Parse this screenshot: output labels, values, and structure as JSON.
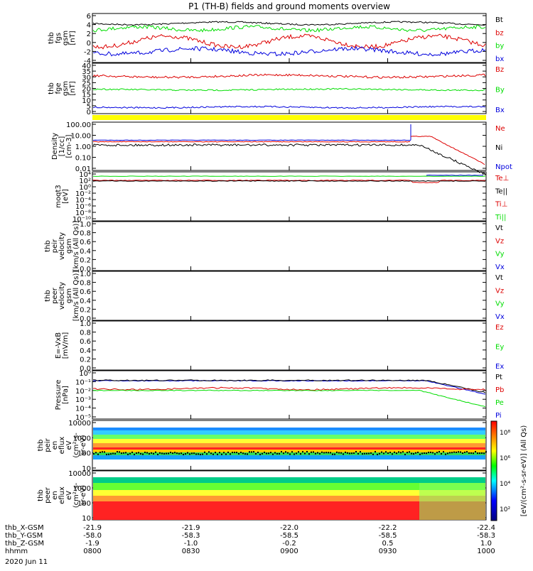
{
  "title": "P1  (TH-B) fields and ground moments overview",
  "date_label": "2020 Jun 11",
  "colors": {
    "black": "#000000",
    "red": "#dd0000",
    "green": "#00dd00",
    "blue": "#0000dd",
    "yellow": "#ffff00"
  },
  "panels": [
    {
      "id": "fgs",
      "ylabel": [
        "thb",
        "fgs",
        "gsm",
        "[nT]"
      ],
      "ticks": [
        "6",
        "4",
        "2",
        "0",
        "-2",
        "-4"
      ],
      "yrange": [
        -5,
        6
      ],
      "legend": [
        {
          "text": "Bt",
          "color": "black"
        },
        {
          "text": "bz",
          "color": "red"
        },
        {
          "text": "by",
          "color": "green"
        },
        {
          "text": "bx",
          "color": "blue"
        }
      ]
    },
    {
      "id": "fge",
      "ylabel": [
        "thb",
        "fge",
        "gsm",
        "[nT]"
      ],
      "ticks": [
        "40",
        "35",
        "30",
        "25",
        "20",
        "15",
        "10",
        "5",
        "0"
      ],
      "yrange": [
        -3,
        40
      ],
      "legend": [
        {
          "text": "Bz",
          "color": "red"
        },
        {
          "text": "By",
          "color": "green"
        },
        {
          "text": "Bx",
          "color": "blue"
        }
      ]
    },
    {
      "id": "density",
      "ylabel": [
        "Density",
        "[1/cc]",
        "[cm-3]"
      ],
      "ticks": [
        "100.00",
        "10.00",
        "1.00",
        "0.10",
        "0.01"
      ],
      "log": true,
      "legend": [
        {
          "text": "Ne",
          "color": "red"
        },
        {
          "text": "Ni",
          "color": "black"
        },
        {
          "text": "Npot",
          "color": "blue"
        }
      ]
    },
    {
      "id": "temperature",
      "ylabel": [
        "moqt3",
        "[eV]"
      ],
      "ticks": [
        "10⁴",
        "10²",
        "10⁰",
        "10⁻²",
        "10⁻⁴",
        "10⁻⁶",
        "10⁻⁸",
        "10⁻¹⁰"
      ],
      "log": true,
      "legend": [
        {
          "text": "Te⊥",
          "color": "red"
        },
        {
          "text": "Te||",
          "color": "black"
        },
        {
          "text": "Ti⊥",
          "color": "red"
        },
        {
          "text": "Ti||",
          "color": "green"
        }
      ]
    },
    {
      "id": "peir_velocity",
      "ylabel": [
        "thb",
        "peir",
        "velocity",
        "gsm",
        "[km/s (All Qs)]"
      ],
      "ticks": [
        "1.0",
        "0.8",
        "0.6",
        "0.4",
        "0.2",
        "0.0"
      ],
      "legend": [
        {
          "text": "Vt",
          "color": "black"
        },
        {
          "text": "Vz",
          "color": "red"
        },
        {
          "text": "Vy",
          "color": "green"
        },
        {
          "text": "Vx",
          "color": "blue"
        }
      ]
    },
    {
      "id": "peer_velocity",
      "ylabel": [
        "thb",
        "peer",
        "velocity",
        "gsm",
        "[km/s (All Qs)]"
      ],
      "ticks": [
        "1.0",
        "0.8",
        "0.6",
        "0.4",
        "0.2",
        "0.0"
      ],
      "legend": [
        {
          "text": "Vt",
          "color": "black"
        },
        {
          "text": "Vz",
          "color": "red"
        },
        {
          "text": "Vy",
          "color": "green"
        },
        {
          "text": "Vx",
          "color": "blue"
        }
      ]
    },
    {
      "id": "efield",
      "ylabel": [
        "E=-VxB",
        "[mV/m]"
      ],
      "ticks": [
        "1.0",
        "0.8",
        "0.6",
        "0.4",
        "0.2",
        "0.0"
      ],
      "legend": [
        {
          "text": "Ez",
          "color": "red"
        },
        {
          "text": "Ey",
          "color": "green"
        },
        {
          "text": "Ex",
          "color": "blue"
        }
      ]
    },
    {
      "id": "pressure",
      "ylabel": [
        "Pressure",
        "[nPa]"
      ],
      "ticks": [
        "10⁰",
        "10⁻¹",
        "10⁻²",
        "10⁻³",
        "10⁻⁴",
        "10⁻⁵"
      ],
      "log": true,
      "legend": [
        {
          "text": "Pt",
          "color": "black"
        },
        {
          "text": "Pb",
          "color": "red"
        },
        {
          "text": "Pe",
          "color": "green"
        },
        {
          "text": "Pi",
          "color": "blue"
        }
      ]
    },
    {
      "id": "peir_eflux",
      "ylabel": [
        "thb",
        "peir",
        "en",
        "eflux",
        "eV",
        "(cm²-s-",
        "sr-eV)"
      ],
      "ticks": [
        "10000",
        "1000",
        "100",
        "10"
      ]
    },
    {
      "id": "peer_eflux",
      "ylabel": [
        "thb",
        "peer",
        "en",
        "eflux",
        "eV",
        "(cm²-s-",
        "sr-eV)"
      ],
      "ticks": [
        "10000",
        "1000",
        "100",
        "10"
      ]
    }
  ],
  "colorbar": {
    "ticks": [
      "10⁸",
      "10⁶",
      "10⁴",
      "10²"
    ],
    "label": "[eV/(cm²-s-sr-eV)] (All Qs)"
  },
  "ephemeris": {
    "row_labels": [
      "thb_X-GSM",
      "thb_Y-GSM",
      "thb_Z-GSM",
      "hhmm"
    ],
    "columns": [
      {
        "values": [
          "-21.9",
          "-58.0",
          "-1.9",
          "0800"
        ]
      },
      {
        "values": [
          "-21.9",
          "-58.3",
          "-1.0",
          "0830"
        ]
      },
      {
        "values": [
          "-22.0",
          "-58.5",
          "-0.2",
          "0900"
        ]
      },
      {
        "values": [
          "-22.2",
          "-58.5",
          "0.5",
          "0930"
        ]
      },
      {
        "values": [
          "-22.4",
          "-58.3",
          "1.0",
          "1000"
        ]
      }
    ]
  },
  "chart_data": {
    "type": "line",
    "x": [
      "0800",
      "0830",
      "0900",
      "0930",
      "1000"
    ],
    "xlabel": "hhmm",
    "series": [
      {
        "name": "Bt",
        "values": [
          3.5,
          4.0,
          3.8,
          3.6,
          3.0
        ]
      },
      {
        "name": "bz",
        "values": [
          -1.0,
          0.5,
          0.0,
          -0.5,
          -1.0
        ]
      },
      {
        "name": "by",
        "values": [
          3.0,
          2.5,
          2.8,
          2.2,
          2.0
        ]
      },
      {
        "name": "bx",
        "values": [
          -2.0,
          -2.5,
          -2.8,
          -2.2,
          -3.0
        ]
      },
      {
        "name": "Bz",
        "values": [
          28,
          30,
          29,
          28,
          29
        ]
      },
      {
        "name": "By",
        "values": [
          18,
          17,
          17,
          17,
          18
        ]
      },
      {
        "name": "Bx",
        "values": [
          3,
          2,
          2,
          3,
          4
        ]
      },
      {
        "name": "Ne",
        "values": [
          3.0,
          2.5,
          2.5,
          8.0,
          0.01
        ]
      },
      {
        "name": "Ni",
        "values": [
          1.5,
          1.2,
          1.2,
          1.5,
          0.005
        ]
      },
      {
        "name": "Npot",
        "values": [
          3.5,
          3.5,
          3.5,
          100,
          0.01
        ]
      }
    ]
  }
}
